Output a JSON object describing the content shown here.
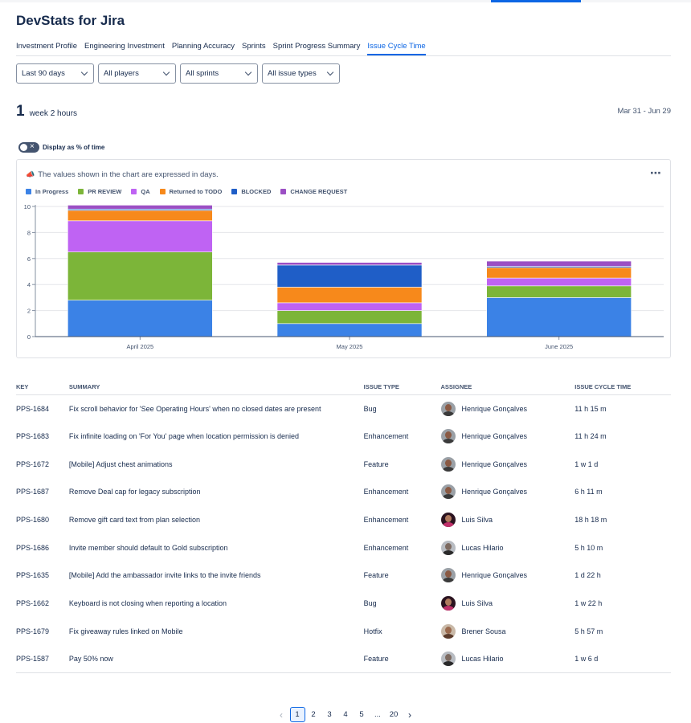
{
  "app": {
    "title": "DevStats for Jira"
  },
  "tabs": [
    {
      "label": "Investment Profile",
      "active": false
    },
    {
      "label": "Engineering Investment",
      "active": false
    },
    {
      "label": "Planning Accuracy",
      "active": false
    },
    {
      "label": "Sprints",
      "active": false
    },
    {
      "label": "Sprint Progress Summary",
      "active": false
    },
    {
      "label": "Issue Cycle Time",
      "active": true
    }
  ],
  "filters": [
    {
      "value": "Last 90 days"
    },
    {
      "value": "All players"
    },
    {
      "value": "All sprints"
    },
    {
      "value": "All issue types"
    }
  ],
  "summary": {
    "total_value": "1",
    "total_unit": "week 2 hours",
    "date_range": "Mar 31 - Jun 29"
  },
  "toggle": {
    "label": "Display as % of time",
    "on": false
  },
  "chart_note": {
    "icon": "megaphone-icon",
    "text": "The values shown in the chart are expressed in days."
  },
  "chart_data": {
    "type": "bar",
    "stacked": true,
    "categories": [
      "April 2025",
      "May 2025",
      "June 2025"
    ],
    "series": [
      {
        "name": "In Progress",
        "color": "#3b82e6",
        "values": [
          2.8,
          1.0,
          3.0
        ]
      },
      {
        "name": "PR REVIEW",
        "color": "#7cb539",
        "values": [
          3.7,
          1.0,
          0.9
        ]
      },
      {
        "name": "QA",
        "color": "#bf63f3",
        "values": [
          2.4,
          0.6,
          0.6
        ]
      },
      {
        "name": "Returned to TODO",
        "color": "#f7891b",
        "values": [
          0.8,
          1.2,
          0.8
        ]
      },
      {
        "name": "BLOCKED",
        "color": "#1f5ec7",
        "values": [
          0.1,
          1.7,
          0.1
        ]
      },
      {
        "name": "CHANGE REQUEST",
        "color": "#9b4fc4",
        "values": [
          0.3,
          0.2,
          0.4
        ]
      }
    ],
    "ylim": [
      0,
      10
    ],
    "yticks": [
      0,
      2,
      4,
      6,
      8,
      10
    ],
    "grid": true,
    "legend": "top-left"
  },
  "table": {
    "columns": [
      "KEY",
      "SUMMARY",
      "ISSUE TYPE",
      "ASSIGNEE",
      "ISSUE CYCLE TIME"
    ],
    "rows": [
      {
        "key": "PPS-1684",
        "summary": "Fix scroll behavior for 'See Operating Hours' when no closed dates are present",
        "type": "Bug",
        "assignee": "Henrique Gonçalves",
        "cycle": "11 h 15 m"
      },
      {
        "key": "PPS-1683",
        "summary": "Fix infinite loading on 'For You' page when location permission is denied",
        "type": "Enhancement",
        "assignee": "Henrique Gonçalves",
        "cycle": "11 h 24 m"
      },
      {
        "key": "PPS-1672",
        "summary": "[Mobile] Adjust chest animations",
        "type": "Feature",
        "assignee": "Henrique Gonçalves",
        "cycle": "1 w 1 d"
      },
      {
        "key": "PPS-1687",
        "summary": "Remove Deal cap for legacy subscription",
        "type": "Enhancement",
        "assignee": "Henrique Gonçalves",
        "cycle": "6 h 11 m"
      },
      {
        "key": "PPS-1680",
        "summary": "Remove gift card text from plan selection",
        "type": "Enhancement",
        "assignee": "Luis Silva",
        "cycle": "18 h 18 m"
      },
      {
        "key": "PPS-1686",
        "summary": "Invite member should default to Gold subscription",
        "type": "Enhancement",
        "assignee": "Lucas Hilario",
        "cycle": "5 h 10 m"
      },
      {
        "key": "PPS-1635",
        "summary": "[Mobile] Add the ambassador invite links to the invite friends",
        "type": "Feature",
        "assignee": "Henrique Gonçalves",
        "cycle": "1 d 22 h"
      },
      {
        "key": "PPS-1662",
        "summary": "Keyboard is not closing when reporting a location",
        "type": "Bug",
        "assignee": "Luis Silva",
        "cycle": "1 w 22 h"
      },
      {
        "key": "PPS-1679",
        "summary": "Fix giveaway rules linked on Mobile",
        "type": "Hotfix",
        "assignee": "Brener Sousa",
        "cycle": "5 h 57 m"
      },
      {
        "key": "PPS-1587",
        "summary": "Pay 50% now",
        "type": "Feature",
        "assignee": "Lucas Hilario",
        "cycle": "1 w 6 d"
      }
    ]
  },
  "pagination": {
    "pages": [
      "1",
      "2",
      "3",
      "4",
      "5",
      "...",
      "20"
    ],
    "current": "1"
  }
}
